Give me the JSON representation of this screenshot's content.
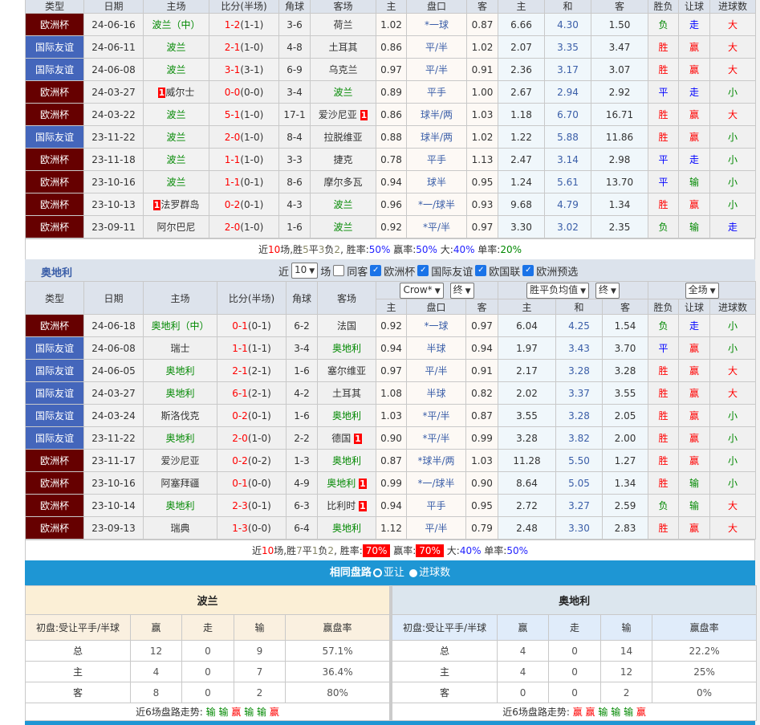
{
  "colors": {
    "euro": "#660000",
    "friendly": "#4466bb",
    "accent_blue": "#1e96d4"
  },
  "headers": {
    "top": [
      "类型",
      "日期",
      "主场",
      "比分(半场)",
      "角球",
      "客场"
    ],
    "odds": [
      "主",
      "盘口",
      "客",
      "主",
      "和",
      "客",
      "胜负",
      "让球",
      "进球数"
    ]
  },
  "poland": {
    "team": "波兰",
    "rows": [
      [
        "欧洲杯",
        "24-06-16",
        "波兰（中）",
        "",
        "1-2",
        "(1-1)",
        "3-6",
        "荷兰",
        "",
        "1.02",
        "*一球",
        "0.87",
        "6.66",
        "4.30",
        "1.50",
        "负",
        "走",
        "大"
      ],
      [
        "国际友谊",
        "24-06-11",
        "波兰",
        "",
        "2-1",
        "(1-0)",
        "4-8",
        "土耳其",
        "",
        "0.86",
        "平/半",
        "1.02",
        "2.07",
        "3.35",
        "3.47",
        "胜",
        "赢",
        "大"
      ],
      [
        "国际友谊",
        "24-06-08",
        "波兰",
        "",
        "3-1",
        "(3-1)",
        "6-9",
        "乌克兰",
        "",
        "0.97",
        "平/半",
        "0.91",
        "2.36",
        "3.17",
        "3.07",
        "胜",
        "赢",
        "大"
      ],
      [
        "欧洲杯",
        "24-03-27",
        "威尔士",
        "1",
        "0-0",
        "(0-0)",
        "3-4",
        "波兰",
        "",
        "0.89",
        "平手",
        "1.00",
        "2.67",
        "2.94",
        "2.92",
        "平",
        "走",
        "小"
      ],
      [
        "欧洲杯",
        "24-03-22",
        "波兰",
        "",
        "5-1",
        "(1-0)",
        "17-1",
        "爱沙尼亚",
        "1",
        "0.86",
        "球半/两",
        "1.03",
        "1.18",
        "6.70",
        "16.71",
        "胜",
        "赢",
        "大"
      ],
      [
        "国际友谊",
        "23-11-22",
        "波兰",
        "",
        "2-0",
        "(1-0)",
        "8-4",
        "拉脱维亚",
        "",
        "0.88",
        "球半/两",
        "1.02",
        "1.22",
        "5.88",
        "11.86",
        "胜",
        "赢",
        "小"
      ],
      [
        "欧洲杯",
        "23-11-18",
        "波兰",
        "",
        "1-1",
        "(1-0)",
        "3-3",
        "捷克",
        "",
        "0.78",
        "平手",
        "1.13",
        "2.47",
        "3.14",
        "2.98",
        "平",
        "走",
        "小"
      ],
      [
        "欧洲杯",
        "23-10-16",
        "波兰",
        "",
        "1-1",
        "(0-1)",
        "8-6",
        "摩尔多瓦",
        "",
        "0.94",
        "球半",
        "0.95",
        "1.24",
        "5.61",
        "13.70",
        "平",
        "输",
        "小"
      ],
      [
        "欧洲杯",
        "23-10-13",
        "法罗群岛",
        "1",
        "0-2",
        "(0-1)",
        "4-3",
        "波兰",
        "",
        "0.96",
        "*一/球半",
        "0.93",
        "9.68",
        "4.79",
        "1.34",
        "胜",
        "赢",
        "小"
      ],
      [
        "欧洲杯",
        "23-09-11",
        "阿尔巴尼",
        "",
        "2-0",
        "(1-0)",
        "1-6",
        "波兰",
        "",
        "0.92",
        "*平/半",
        "0.97",
        "3.30",
        "3.02",
        "2.35",
        "负",
        "输",
        "走"
      ]
    ],
    "summary": {
      "l1": "近",
      "n": "10",
      "l2": "场,胜",
      "w": "5",
      "l3": "平",
      "d": "3",
      "l4": "负",
      "l": "2",
      "l5": ", 胜率:",
      "wr": "50%",
      "l6": " 赢率:",
      "yr": "50%",
      "l7": " 大:",
      "big": "40%",
      "l8": " 单率:",
      "odd": "20%"
    }
  },
  "austria": {
    "team": "奥地利",
    "filter": {
      "near": "近",
      "count": "10",
      "unit": "场",
      "same_away": "同客",
      "leagues": [
        "欧洲杯",
        "国际友谊",
        "欧国联",
        "欧洲预选"
      ]
    },
    "selects": {
      "company": "Crow*",
      "stage1": "终",
      "avg": "胜平负均值",
      "stage2": "终",
      "period": "全场"
    },
    "rows": [
      [
        "欧洲杯",
        "24-06-18",
        "奥地利（中）",
        "",
        "0-1",
        "(0-1)",
        "6-2",
        "法国",
        "",
        "0.92",
        "*一球",
        "0.97",
        "6.04",
        "4.25",
        "1.54",
        "负",
        "走",
        "小"
      ],
      [
        "国际友谊",
        "24-06-08",
        "瑞士",
        "",
        "1-1",
        "(1-1)",
        "3-4",
        "奥地利",
        "",
        "0.94",
        "半球",
        "0.94",
        "1.97",
        "3.43",
        "3.70",
        "平",
        "赢",
        "小"
      ],
      [
        "国际友谊",
        "24-06-05",
        "奥地利",
        "",
        "2-1",
        "(2-1)",
        "1-6",
        "塞尔维亚",
        "",
        "0.97",
        "平/半",
        "0.91",
        "2.17",
        "3.28",
        "3.28",
        "胜",
        "赢",
        "大"
      ],
      [
        "国际友谊",
        "24-03-27",
        "奥地利",
        "",
        "6-1",
        "(2-1)",
        "4-2",
        "土耳其",
        "",
        "1.08",
        "半球",
        "0.82",
        "2.02",
        "3.37",
        "3.55",
        "胜",
        "赢",
        "大"
      ],
      [
        "国际友谊",
        "24-03-24",
        "斯洛伐克",
        "",
        "0-2",
        "(0-1)",
        "1-6",
        "奥地利",
        "",
        "1.03",
        "*平/半",
        "0.87",
        "3.55",
        "3.28",
        "2.05",
        "胜",
        "赢",
        "小"
      ],
      [
        "国际友谊",
        "23-11-22",
        "奥地利",
        "",
        "2-0",
        "(1-0)",
        "2-2",
        "德国",
        "1",
        "0.90",
        "*平/半",
        "0.99",
        "3.28",
        "3.82",
        "2.00",
        "胜",
        "赢",
        "小"
      ],
      [
        "欧洲杯",
        "23-11-17",
        "爱沙尼亚",
        "",
        "0-2",
        "(0-2)",
        "1-3",
        "奥地利",
        "",
        "0.87",
        "*球半/两",
        "1.03",
        "11.28",
        "5.50",
        "1.27",
        "胜",
        "赢",
        "小"
      ],
      [
        "欧洲杯",
        "23-10-16",
        "阿塞拜疆",
        "",
        "0-1",
        "(0-0)",
        "4-9",
        "奥地利",
        "1",
        "0.99",
        "*一/球半",
        "0.90",
        "8.64",
        "5.05",
        "1.34",
        "胜",
        "输",
        "小"
      ],
      [
        "欧洲杯",
        "23-10-14",
        "奥地利",
        "",
        "2-3",
        "(0-1)",
        "6-3",
        "比利时",
        "1",
        "0.94",
        "平手",
        "0.95",
        "2.72",
        "3.27",
        "2.59",
        "负",
        "输",
        "大"
      ],
      [
        "欧洲杯",
        "23-09-13",
        "瑞典",
        "",
        "1-3",
        "(0-0)",
        "6-4",
        "奥地利",
        "",
        "1.12",
        "平/半",
        "0.79",
        "2.48",
        "3.30",
        "2.83",
        "胜",
        "赢",
        "大"
      ]
    ],
    "summary": {
      "l1": "近",
      "n": "10",
      "l2": "场,胜",
      "w": "7",
      "l3": "平",
      "d": "1",
      "l4": "负",
      "l": "2",
      "l5": ", 胜率:",
      "wr": "70%",
      "l6": " 赢率:",
      "yr": "70%",
      "l7": " 大:",
      "big": "40%",
      "l8": " 单率:",
      "odd": "50%"
    }
  },
  "same_handicap": {
    "title": "相同盘路",
    "options": [
      "亚让",
      "进球数"
    ],
    "selected": "亚让"
  },
  "stats": [
    {
      "team": "波兰",
      "cols": [
        "初盘:受让平手/半球",
        "赢",
        "走",
        "输",
        "赢盘率"
      ],
      "rows": [
        [
          "总",
          "12",
          "0",
          "9",
          "57.1%"
        ],
        [
          "主",
          "4",
          "0",
          "7",
          "36.4%"
        ],
        [
          "客",
          "8",
          "0",
          "2",
          "80%"
        ]
      ],
      "trend_label": "近6场盘路走势:",
      "trend": [
        "输",
        "输",
        "赢",
        "输",
        "输",
        "赢"
      ]
    },
    {
      "team": "奥地利",
      "cols": [
        "初盘:受让平手/半球",
        "赢",
        "走",
        "输",
        "赢盘率"
      ],
      "rows": [
        [
          "总",
          "4",
          "0",
          "14",
          "22.2%"
        ],
        [
          "主",
          "4",
          "0",
          "12",
          "25%"
        ],
        [
          "客",
          "0",
          "0",
          "2",
          "0%"
        ]
      ],
      "trend_label": "近6场盘路走势:",
      "trend": [
        "赢",
        "赢",
        "输",
        "输",
        "输",
        "赢"
      ]
    }
  ]
}
